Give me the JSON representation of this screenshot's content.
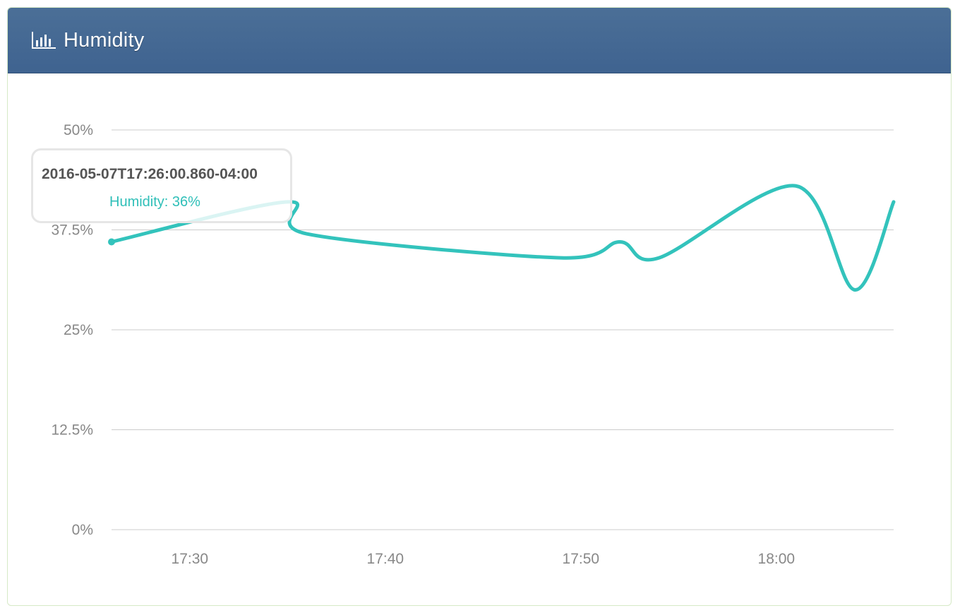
{
  "panel": {
    "title": "Humidity",
    "icon": "bar-chart-icon"
  },
  "colors": {
    "header": "#45698f",
    "line": "#33c3bc",
    "grid": "#cccccc",
    "tick_text": "#888888"
  },
  "tooltip": {
    "timestamp": "2016-05-07T17:26:00.860-04:00",
    "series_label": "Humidity: 36%"
  },
  "chart_data": {
    "type": "line",
    "title": "",
    "xlabel": "",
    "ylabel": "",
    "ylim": [
      0,
      50
    ],
    "xlim": [
      "17:26",
      "18:06"
    ],
    "grid": true,
    "yticks": [
      {
        "value": 0,
        "label": "0%"
      },
      {
        "value": 12.5,
        "label": "12.5%"
      },
      {
        "value": 25,
        "label": "25%"
      },
      {
        "value": 37.5,
        "label": "37.5%"
      },
      {
        "value": 50,
        "label": "50%"
      }
    ],
    "xticks": [
      {
        "value": "17:30",
        "label": "17:30"
      },
      {
        "value": "17:40",
        "label": "17:40"
      },
      {
        "value": "17:50",
        "label": "17:50"
      },
      {
        "value": "18:00",
        "label": "18:00"
      }
    ],
    "series": [
      {
        "name": "Humidity",
        "points": [
          {
            "x": "17:26",
            "y": 36
          },
          {
            "x": "17:35",
            "y": 41
          },
          {
            "x": "17:36",
            "y": 37
          },
          {
            "x": "17:49",
            "y": 34
          },
          {
            "x": "17:52",
            "y": 36
          },
          {
            "x": "17:54",
            "y": 34
          },
          {
            "x": "18:01",
            "y": 43
          },
          {
            "x": "18:04",
            "y": 30
          },
          {
            "x": "18:06",
            "y": 41
          }
        ]
      }
    ]
  }
}
